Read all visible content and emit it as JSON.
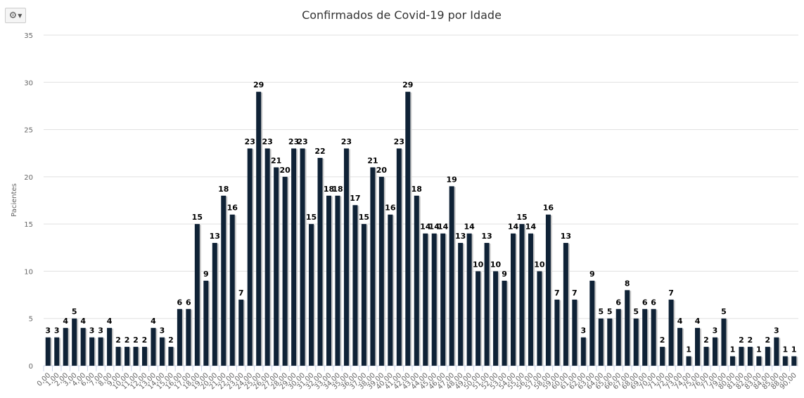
{
  "toolbar": {
    "menu_icon": "gears-icon",
    "caret_icon": "caret-down-icon"
  },
  "colors": {
    "bar": "#0f2236",
    "shadow": "#c8c8c8",
    "grid": "#e0e0e0"
  },
  "chart_data": {
    "type": "bar",
    "title": "Confirmados de Covid-19 por Idade",
    "xlabel": "",
    "ylabel": "Pacientes",
    "ylim": [
      0,
      35
    ],
    "yticks": [
      0,
      5,
      10,
      15,
      20,
      25,
      30,
      35
    ],
    "grid": true,
    "data_labels": true,
    "categories": [
      "0,00",
      "1,00",
      "2,00",
      "3,00",
      "4,00",
      "6,00",
      "7,00",
      "8,00",
      "9,00",
      "10,00",
      "11,00",
      "12,00",
      "13,00",
      "14,00",
      "15,00",
      "16,00",
      "17,00",
      "18,00",
      "19,00",
      "20,00",
      "21,00",
      "22,00",
      "23,00",
      "24,00",
      "25,00",
      "26,00",
      "27,00",
      "28,00",
      "29,00",
      "30,00",
      "31,00",
      "32,00",
      "33,00",
      "34,00",
      "35,00",
      "36,00",
      "37,00",
      "38,00",
      "39,00",
      "40,00",
      "41,00",
      "42,00",
      "43,00",
      "44,00",
      "45,00",
      "46,00",
      "47,00",
      "48,00",
      "49,00",
      "50,00",
      "51,00",
      "52,00",
      "53,00",
      "54,00",
      "55,00",
      "56,00",
      "57,00",
      "58,00",
      "59,00",
      "60,00",
      "61,00",
      "62,00",
      "63,00",
      "64,00",
      "65,00",
      "66,00",
      "67,00",
      "68,00",
      "69,00",
      "70,00",
      "71,00",
      "72,00",
      "73,00",
      "74,00",
      "75,00",
      "76,00",
      "77,00",
      "79,00",
      "80,00",
      "81,00",
      "82,00",
      "83,00",
      "84,00",
      "85,00",
      "88,00",
      "90,00"
    ],
    "values": [
      3,
      3,
      4,
      5,
      4,
      3,
      3,
      4,
      2,
      2,
      2,
      2,
      4,
      3,
      2,
      6,
      6,
      15,
      9,
      13,
      18,
      16,
      7,
      23,
      29,
      23,
      21,
      20,
      23,
      23,
      15,
      22,
      18,
      18,
      23,
      17,
      15,
      21,
      20,
      16,
      23,
      29,
      18,
      14,
      14,
      14,
      19,
      13,
      14,
      10,
      13,
      10,
      9,
      14,
      15,
      14,
      10,
      16,
      7,
      13,
      7,
      3,
      9,
      5,
      5,
      6,
      8,
      5,
      6,
      6,
      2,
      7,
      4,
      1,
      4,
      2,
      3,
      5,
      1,
      2,
      2,
      1,
      2,
      3,
      1,
      1
    ]
  }
}
